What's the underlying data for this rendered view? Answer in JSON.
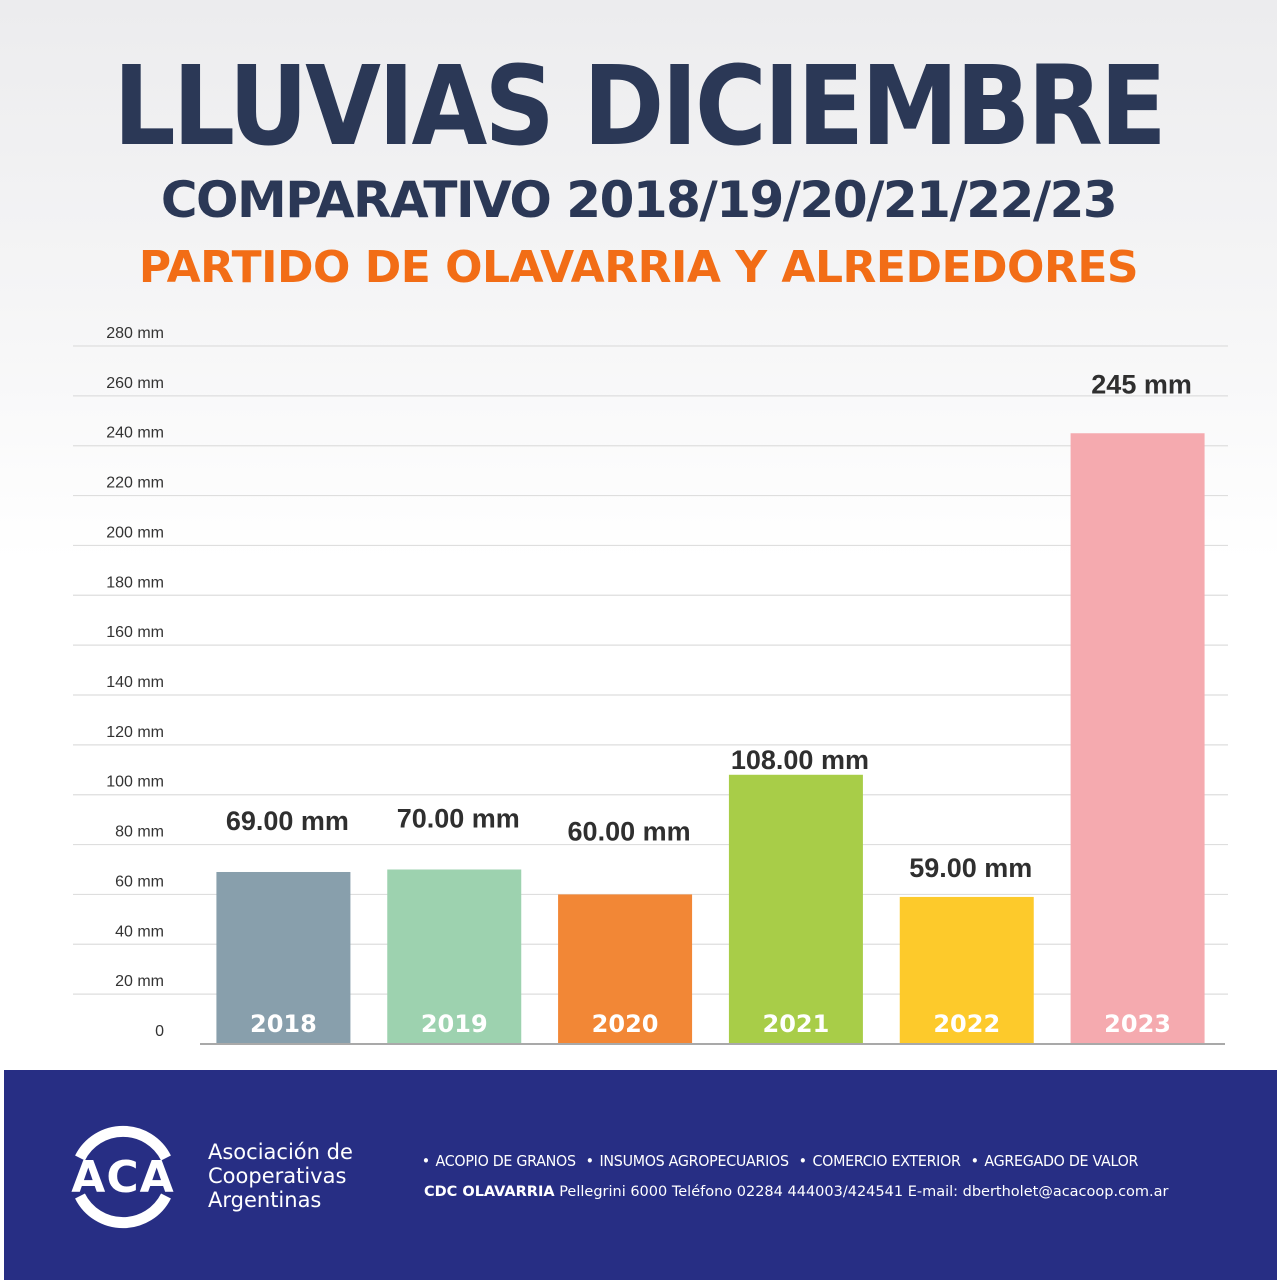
{
  "header": {
    "title": "LLUVIAS DICIEMBRE",
    "subtitle": "COMPARATIVO 2018/19/20/21/22/23",
    "location": "PARTIDO DE OLAVARRIA Y ALREDEDORES",
    "title_color": "#2b3856",
    "location_color": "#f26d16"
  },
  "chart_data": {
    "type": "bar",
    "title": "LLUVIAS DICIEMBRE",
    "subtitle": "COMPARATIVO 2018/19/20/21/22/23",
    "xlabel": "",
    "ylabel": "",
    "unit": "mm",
    "ylim": [
      0,
      280
    ],
    "grid": true,
    "yticks": [
      0,
      20,
      40,
      60,
      80,
      100,
      120,
      140,
      160,
      180,
      200,
      220,
      240,
      260,
      280
    ],
    "ytick_labels": [
      "0",
      "20 mm",
      "40 mm",
      "60 mm",
      "80 mm",
      "100 mm",
      "120 mm",
      "140 mm",
      "160 mm",
      "180 mm",
      "200 mm",
      "220 mm",
      "240 mm",
      "260 mm",
      "280 mm"
    ],
    "categories": [
      "2018",
      "2019",
      "2020",
      "2021",
      "2022",
      "2023"
    ],
    "values": [
      69,
      70,
      60,
      108,
      59,
      245
    ],
    "value_labels": [
      "69.00 mm",
      "70.00 mm",
      "60.00 mm",
      "108.00 mm",
      "59.00 mm",
      "245 mm"
    ],
    "colors": [
      "#889fac",
      "#9dd2af",
      "#f28736",
      "#a8cd48",
      "#fdca2b",
      "#f5aaaf"
    ],
    "legend": "none"
  },
  "footer": {
    "background": "#272e84",
    "logo_text": "ACA",
    "org_name": [
      "Asociación de",
      "Cooperativas",
      "Argentinas"
    ],
    "services": [
      "ACOPIO DE GRANOS",
      "INSUMOS AGROPECUARIOS",
      "COMERCIO EXTERIOR",
      "AGREGADO DE VALOR"
    ],
    "contact": {
      "branch": "CDC OLAVARRIA",
      "details": "Pellegrini 6000 Teléfono 02284 444003/424541 E-mail: dbertholet@acacoop.com.ar"
    }
  }
}
